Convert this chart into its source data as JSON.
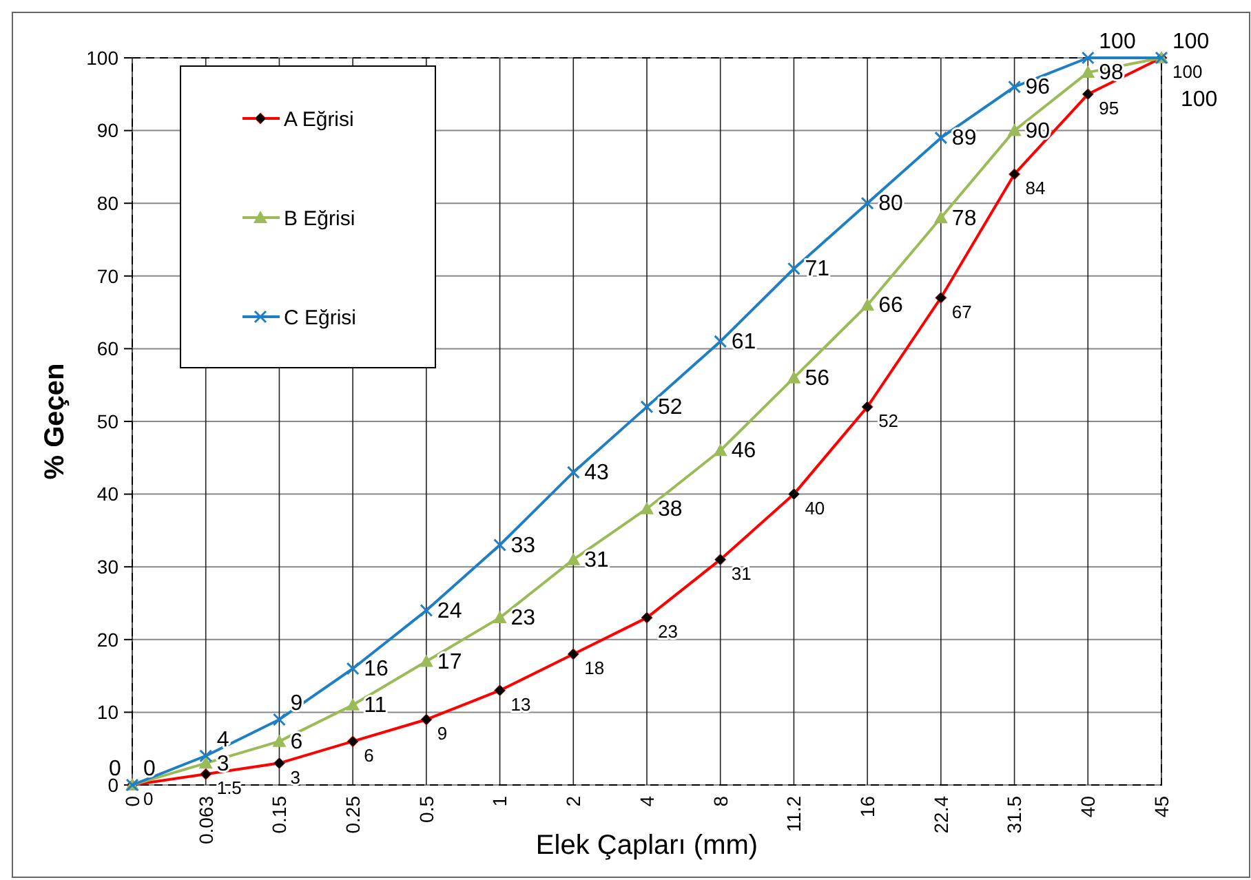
{
  "chart_data": {
    "type": "line",
    "xlabel": "Elek Çapları (mm)",
    "ylabel": "% Geçen",
    "categories": [
      "0",
      "0.063",
      "0.15",
      "0.25",
      "0.5",
      "1",
      "2",
      "4",
      "8",
      "11.2",
      "16",
      "22.4",
      "31.5",
      "40",
      "45"
    ],
    "series": [
      {
        "name": "A Eğrisi",
        "color": "#ff0000",
        "marker": "diamond",
        "values": [
          0,
          1.5,
          3,
          6,
          9,
          13,
          18,
          23,
          31,
          40,
          52,
          67,
          84,
          95,
          100
        ]
      },
      {
        "name": "B Eğrisi",
        "color": "#9bbb59",
        "marker": "triangle",
        "values": [
          0,
          3,
          6,
          11,
          17,
          23,
          31,
          38,
          46,
          56,
          66,
          78,
          90,
          98,
          100
        ]
      },
      {
        "name": "C Eğrisi",
        "color": "#1f7fc4",
        "marker": "cross",
        "values": [
          0,
          4,
          9,
          16,
          24,
          33,
          43,
          52,
          61,
          71,
          80,
          89,
          96,
          100,
          100
        ]
      }
    ],
    "ylim": [
      0,
      100
    ],
    "yticks": [
      0,
      10,
      20,
      30,
      40,
      50,
      60,
      70,
      80,
      90,
      100
    ],
    "grid": true,
    "legend": "top left",
    "data_labels": true
  }
}
